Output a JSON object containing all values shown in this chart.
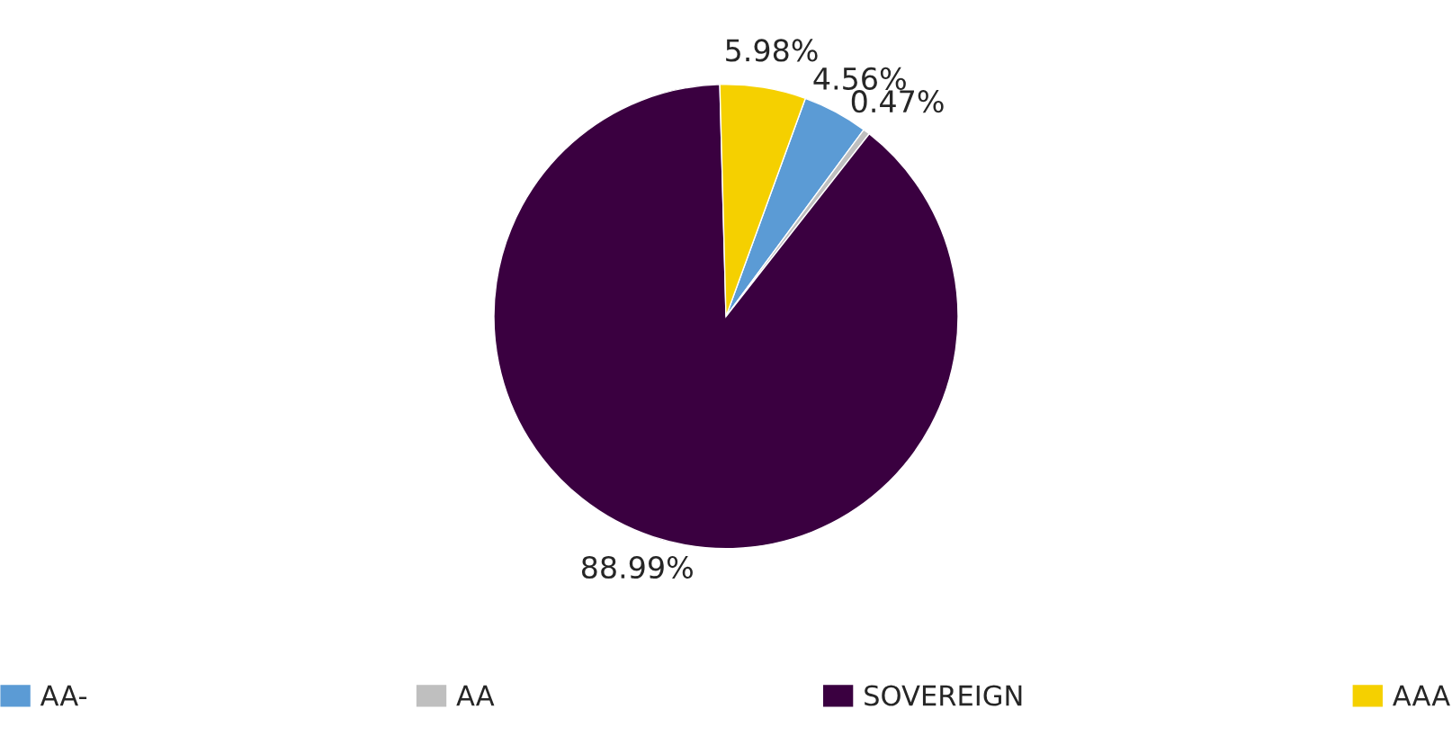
{
  "chart_data": {
    "type": "pie",
    "categories": [
      "AA-",
      "AA",
      "SOVEREIGN",
      "AAA"
    ],
    "values": [
      4.56,
      0.47,
      88.99,
      5.98
    ],
    "colors": [
      "#5b9bd5",
      "#bfbfbf",
      "#3a0040",
      "#f5d000"
    ],
    "value_labels": [
      "4.56%",
      "0.47%",
      "88.99%",
      "5.98%"
    ],
    "legend": "bottom"
  }
}
